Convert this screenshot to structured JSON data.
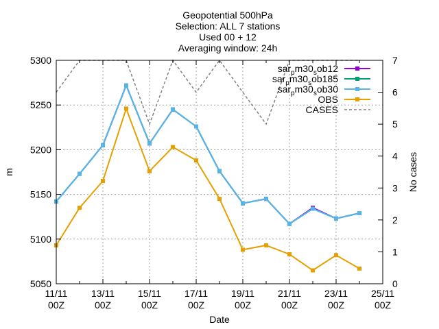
{
  "chart_data": {
    "type": "line",
    "title_lines": [
      "Geopotential 500hPa",
      "Selection: ALL      7 stations",
      "Used 00 + 12",
      "Averaging window: 24h"
    ],
    "xlabel": "Date",
    "ylabel": "m",
    "y2label": "No cases",
    "x_ticks": [
      {
        "day": 0,
        "line1": "11/11",
        "line2": "00Z"
      },
      {
        "day": 2,
        "line1": "13/11",
        "line2": "00Z"
      },
      {
        "day": 4,
        "line1": "15/11",
        "line2": "00Z"
      },
      {
        "day": 6,
        "line1": "17/11",
        "line2": "00Z"
      },
      {
        "day": 8,
        "line1": "19/11",
        "line2": "00Z"
      },
      {
        "day": 10,
        "line1": "21/11",
        "line2": "00Z"
      },
      {
        "day": 12,
        "line1": "23/11",
        "line2": "00Z"
      },
      {
        "day": 14,
        "line1": "25/11",
        "line2": "00Z"
      }
    ],
    "xlim": [
      0,
      14
    ],
    "ylim": [
      5050,
      5300
    ],
    "y_ticks": [
      "5050",
      "5100",
      "5150",
      "5200",
      "5250",
      "5300"
    ],
    "y2lim": [
      0,
      7
    ],
    "y2_ticks": [
      "0",
      "1",
      "2",
      "3",
      "4",
      "5",
      "6",
      "7"
    ],
    "grid": true,
    "legend_position": "top-right",
    "series": [
      {
        "name": "sar_p m30_s ob12",
        "name_parts": [
          "sar",
          "p",
          "m30",
          "s",
          "ob12"
        ],
        "color": "#9400d3",
        "marker": "square",
        "axis": "y1",
        "x": [
          0,
          1,
          2,
          3,
          4,
          5,
          6,
          7,
          8,
          9,
          10,
          11,
          12,
          13
        ],
        "values": [
          5142,
          5173,
          5205,
          5272,
          5207,
          5245,
          5226,
          5176,
          5140,
          5145,
          5117,
          5135,
          5123,
          5129
        ]
      },
      {
        "name": "sar_p m30_s ob185",
        "name_parts": [
          "sar",
          "p",
          "m30",
          "s",
          "ob185"
        ],
        "color": "#009e73",
        "marker": "square",
        "axis": "y1",
        "x": [
          0,
          1,
          2,
          3,
          4,
          5,
          6,
          7,
          8,
          9,
          10,
          11,
          12,
          13
        ],
        "values": [
          5142,
          5173,
          5205,
          5272,
          5207,
          5245,
          5226,
          5176,
          5140,
          5145,
          5117,
          5134,
          5123,
          5129
        ]
      },
      {
        "name": "sar_p m30_s ob30",
        "name_parts": [
          "sar",
          "p",
          "m30",
          "s",
          "ob30"
        ],
        "color": "#56b4e9",
        "marker": "square",
        "axis": "y1",
        "x": [
          0,
          1,
          2,
          3,
          4,
          5,
          6,
          7,
          8,
          9,
          10,
          11,
          12,
          13
        ],
        "values": [
          5142,
          5173,
          5205,
          5272,
          5207,
          5245,
          5226,
          5176,
          5140,
          5145,
          5117,
          5134,
          5123,
          5129
        ]
      },
      {
        "name": "OBS",
        "name_parts": [
          "OBS"
        ],
        "color": "#e69f00",
        "marker": "square",
        "axis": "y1",
        "x": [
          0,
          1,
          2,
          3,
          4,
          5,
          6,
          7,
          8,
          9,
          10,
          11,
          12,
          13
        ],
        "values": [
          5093,
          5135,
          5165,
          5246,
          5176,
          5203,
          5188,
          5145,
          5088,
          5093,
          5083,
          5065,
          5082,
          5067
        ]
      },
      {
        "name": "CASES",
        "name_parts": [
          "CASES"
        ],
        "color": "#808080",
        "marker": "none",
        "dashed": true,
        "axis": "y2",
        "x": [
          0,
          1,
          2,
          3,
          4,
          5,
          6,
          7,
          8,
          9,
          10,
          11,
          12,
          13
        ],
        "values": [
          6,
          7,
          7,
          7,
          5,
          7,
          6,
          7,
          6,
          5,
          7,
          7,
          7,
          7
        ]
      }
    ]
  }
}
